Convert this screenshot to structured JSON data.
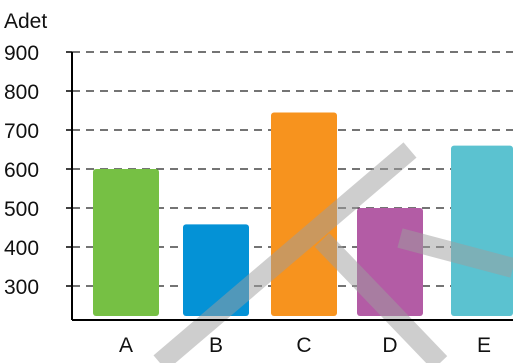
{
  "chart_data": {
    "type": "bar",
    "title": "",
    "xlabel": "",
    "ylabel": "Adet",
    "categories": [
      "A",
      "B",
      "C",
      "D",
      "E"
    ],
    "values": [
      600,
      458,
      745,
      500,
      660
    ],
    "colors": [
      "#76c044",
      "#0492d6",
      "#f7931e",
      "#b35ca5",
      "#5bc2d0"
    ],
    "yticks": [
      300,
      400,
      500,
      600,
      700,
      800,
      900
    ],
    "ylim": [
      220,
      900
    ],
    "grid": "horizontal-dashed",
    "watermark": {
      "type": "diagonal-cross",
      "color": "#9e9e9e",
      "opacity": 0.5
    }
  }
}
